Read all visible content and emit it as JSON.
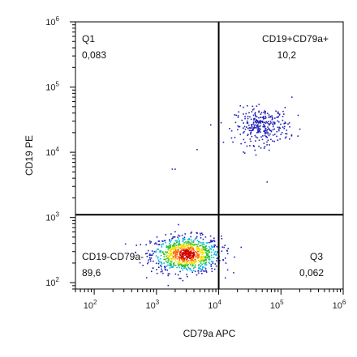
{
  "chart_data": {
    "type": "scatter",
    "subtype": "flow-cytometry-density-dot-plot",
    "xlabel": "CD79a APC",
    "ylabel": "CD19 PE",
    "x_scale": "log",
    "y_scale": "log",
    "xlim": [
      50,
      1000000
    ],
    "ylim": [
      80,
      1000000
    ],
    "x_ticks": [
      {
        "value": 100,
        "base": "10",
        "exp": "2"
      },
      {
        "value": 1000,
        "base": "10",
        "exp": "3"
      },
      {
        "value": 10000,
        "base": "10",
        "exp": "4"
      },
      {
        "value": 100000,
        "base": "10",
        "exp": "5"
      },
      {
        "value": 1000000,
        "base": "10",
        "exp": "6"
      }
    ],
    "y_ticks": [
      {
        "value": 100,
        "base": "10",
        "exp": "2"
      },
      {
        "value": 1000,
        "base": "10",
        "exp": "3"
      },
      {
        "value": 10000,
        "base": "10",
        "exp": "4"
      },
      {
        "value": 100000,
        "base": "10",
        "exp": "5"
      },
      {
        "value": 1000000,
        "base": "10",
        "exp": "6"
      }
    ],
    "gates": {
      "x": 10000,
      "y": 1100
    },
    "quadrants": [
      {
        "name": "Q1",
        "value": "0,083"
      },
      {
        "name": "CD19+CD79a+",
        "value": "10,2"
      },
      {
        "name": "CD19-CD79a-",
        "value": "89,6"
      },
      {
        "name": "Q3",
        "value": "0,062"
      }
    ],
    "populations": [
      {
        "center_x": 3000,
        "center_y": 270,
        "spread_x_decades": 0.28,
        "spread_y_decades": 0.14,
        "events": 900,
        "density_coloring": true
      },
      {
        "center_x": 50000,
        "center_y": 25000,
        "spread_x_decades": 0.22,
        "spread_y_decades": 0.14,
        "events": 300,
        "density_coloring": false
      }
    ],
    "stray_events": [
      {
        "x": 1800,
        "y": 5500
      },
      {
        "x": 2000,
        "y": 5500
      },
      {
        "x": 4500,
        "y": 11000
      },
      {
        "x": 60000,
        "y": 3500
      },
      {
        "x": 150000,
        "y": 70000
      }
    ],
    "grid": false,
    "colors": {
      "low_density": "#1f1fb8",
      "high_density": "#d10000",
      "gate": "#000000"
    }
  }
}
